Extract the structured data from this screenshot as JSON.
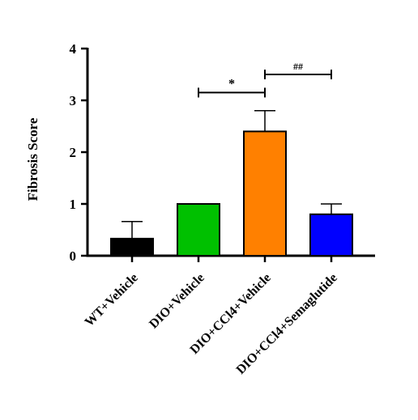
{
  "chart_data": {
    "type": "bar",
    "ylabel": "Fibrosis Score",
    "xlabel": "",
    "ylim": [
      0,
      4
    ],
    "yticks": [
      "0",
      "1",
      "2",
      "3",
      "4"
    ],
    "categories": [
      "WT+Vehicle",
      "DIO+Vehicle",
      "DIO+CCl4+Vehicle",
      "DIO+CCl4+Semaglutide"
    ],
    "values": [
      0.33,
      1.0,
      2.4,
      0.8
    ],
    "errors": [
      0.33,
      0.0,
      0.4,
      0.2
    ],
    "colors": [
      "#000000",
      "#00c000",
      "#ff8000",
      "#0000ff"
    ],
    "significance": [
      {
        "label": "*",
        "from": 1,
        "to": 2,
        "y": 3.15
      },
      {
        "label": "##",
        "from": 2,
        "to": 3,
        "y": 3.5
      }
    ]
  }
}
